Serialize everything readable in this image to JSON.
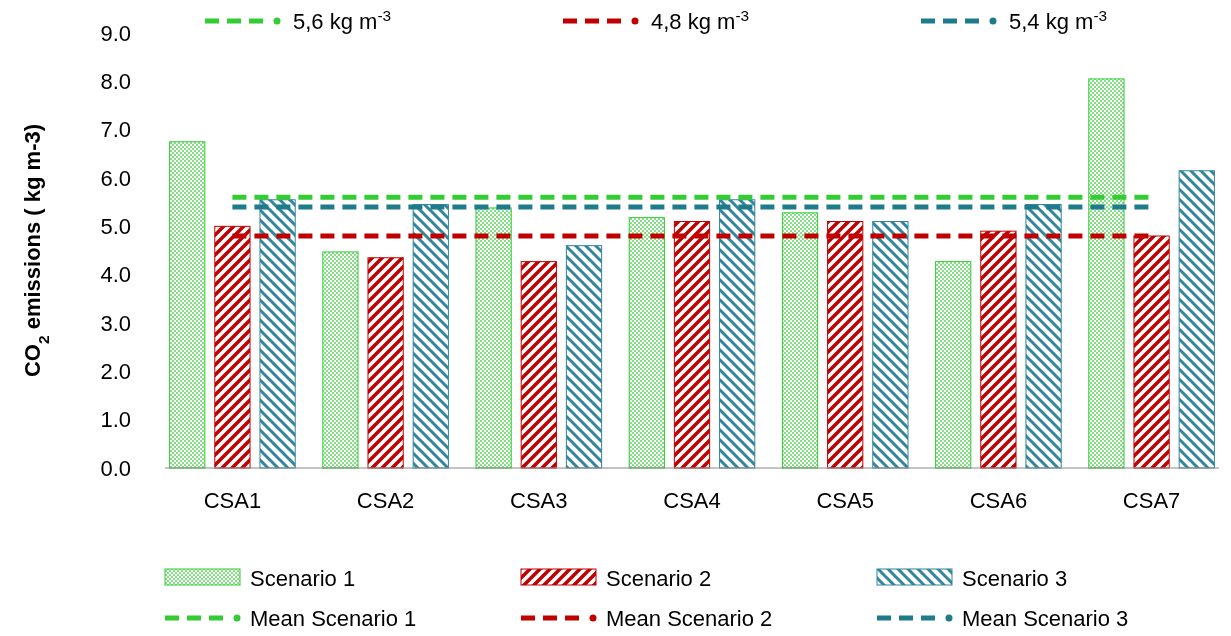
{
  "chart_data": {
    "type": "bar",
    "ylabel": "CO$_{2}$ emissions ( kg m-3)",
    "categories": [
      "CSA1",
      "CSA2",
      "CSA3",
      "CSA4",
      "CSA5",
      "CSA6",
      "CSA7"
    ],
    "series": [
      {
        "name": "Scenario 1",
        "color": "#33cc33",
        "values": [
          6.75,
          4.47,
          5.38,
          5.18,
          5.28,
          4.27,
          8.05
        ]
      },
      {
        "name": "Scenario 2",
        "color": "#c00000",
        "values": [
          5.0,
          4.35,
          4.27,
          5.1,
          5.1,
          4.9,
          4.8
        ]
      },
      {
        "name": "Scenario 3",
        "color": "#31859c",
        "values": [
          5.55,
          5.45,
          4.6,
          5.55,
          5.1,
          5.45,
          6.15
        ]
      },
      {
        "name": "Mean Scenario 1",
        "type": "line",
        "color": "#33cc33",
        "values": [
          5.6,
          5.6,
          5.6,
          5.6,
          5.6,
          5.6,
          5.6
        ]
      },
      {
        "name": "Mean Scenario 2",
        "type": "line",
        "color": "#c00000",
        "values": [
          4.8,
          4.8,
          4.8,
          4.8,
          4.8,
          4.8,
          4.8
        ]
      },
      {
        "name": "Mean Scenario 3",
        "type": "line",
        "color": "#1f7a8c",
        "values": [
          5.4,
          5.4,
          5.4,
          5.4,
          5.4,
          5.4,
          5.4
        ]
      }
    ],
    "annotations": [
      "5,6 kg m$^{-3}$",
      "4,8 kg m$^{-3}$",
      "5,4 kg m$^{-3}$"
    ],
    "ylim": [
      0,
      9
    ],
    "yticks": [
      {
        "value": 0,
        "label": "0.0"
      },
      {
        "value": 1,
        "label": "1.0"
      },
      {
        "value": 2,
        "label": "2.0"
      },
      {
        "value": 3,
        "label": "3.0"
      },
      {
        "value": 4,
        "label": "4.0"
      },
      {
        "value": 5,
        "label": "5.0"
      },
      {
        "value": 6,
        "label": "6.0"
      },
      {
        "value": 7,
        "label": "7.0"
      },
      {
        "value": 8,
        "label": "8.0"
      },
      {
        "value": 9,
        "label": "9.0"
      }
    ],
    "line_style": "dashed",
    "legend": "bottom",
    "grid": false
  }
}
